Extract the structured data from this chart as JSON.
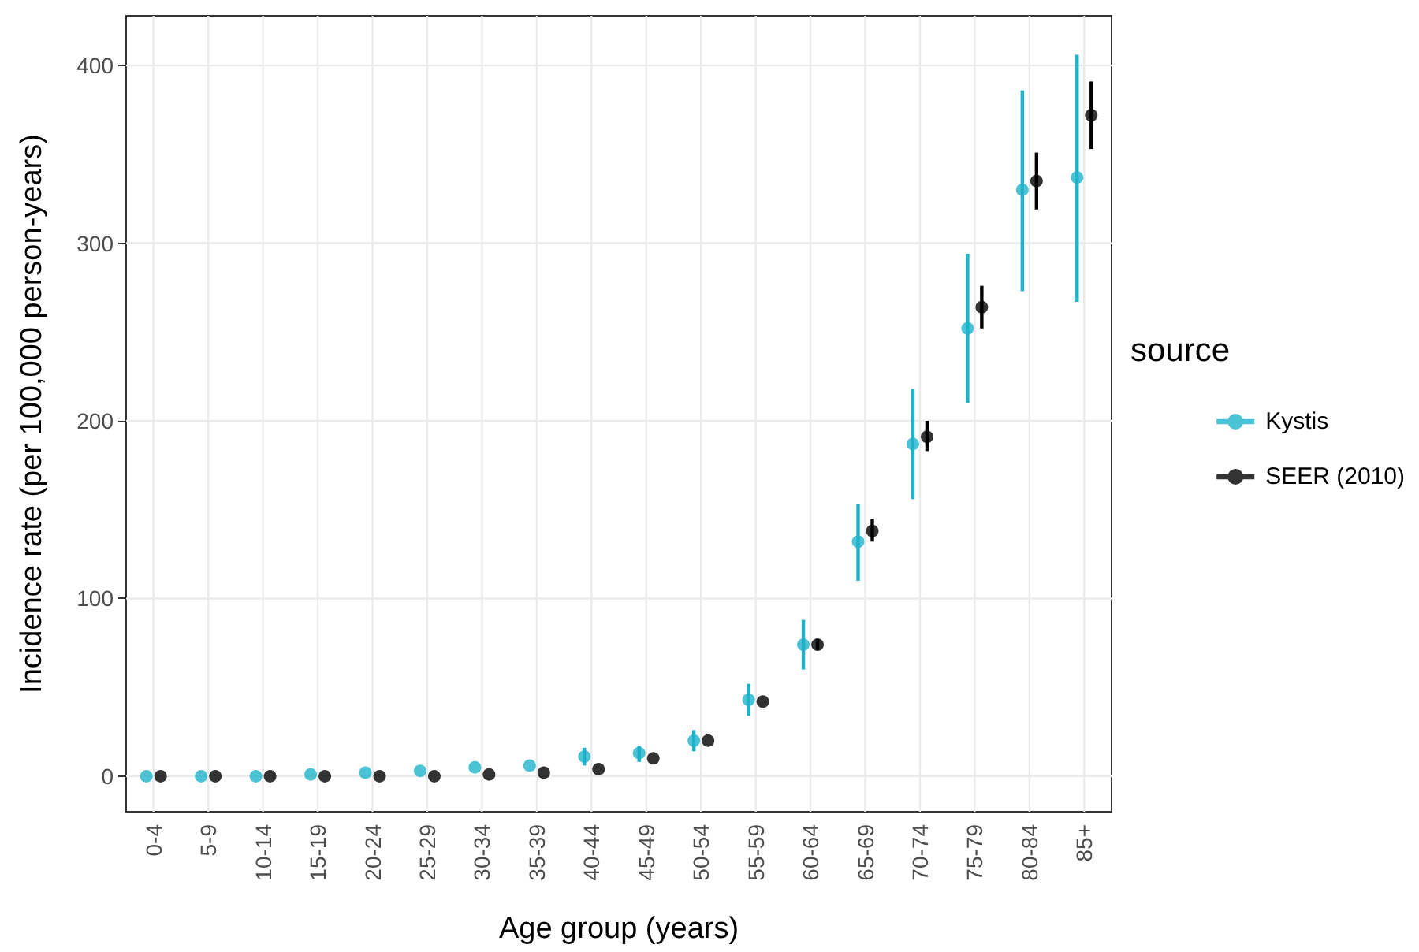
{
  "chart_data": {
    "type": "scatter",
    "xlabel": "Age group (years)",
    "ylabel": "Incidence rate (per 100,000 person-years)",
    "legend_title": "source",
    "categories": [
      "0-4",
      "5-9",
      "10-14",
      "15-19",
      "20-24",
      "25-29",
      "30-34",
      "35-39",
      "40-44",
      "45-49",
      "50-54",
      "55-59",
      "60-64",
      "65-69",
      "70-74",
      "75-79",
      "80-84",
      "85+"
    ],
    "series": [
      {
        "name": "Kystis",
        "color": "#1fb3cb",
        "values": [
          0,
          0,
          0,
          1,
          2,
          3,
          5,
          6,
          11,
          13,
          20,
          43,
          74,
          132,
          187,
          252,
          330,
          337
        ],
        "errors": [
          null,
          null,
          null,
          null,
          null,
          null,
          null,
          null,
          [
            6,
            16
          ],
          [
            8,
            17
          ],
          [
            14,
            26
          ],
          [
            34,
            52
          ],
          [
            60,
            88
          ],
          [
            110,
            153
          ],
          [
            156,
            218
          ],
          [
            210,
            294
          ],
          [
            273,
            386
          ],
          [
            267,
            406
          ]
        ]
      },
      {
        "name": "SEER (2010)",
        "color": "#000000",
        "values": [
          0,
          0,
          0,
          0,
          0,
          0,
          1,
          2,
          4,
          10,
          20,
          42,
          74,
          138,
          191,
          264,
          335,
          372
        ],
        "errors": [
          null,
          null,
          null,
          null,
          null,
          null,
          null,
          null,
          null,
          null,
          null,
          null,
          [
            71,
            77
          ],
          [
            132,
            145
          ],
          [
            183,
            200
          ],
          [
            252,
            276
          ],
          [
            319,
            351
          ],
          [
            353,
            391
          ]
        ]
      }
    ],
    "ylim": [
      -20,
      428
    ],
    "yticks": [
      0,
      100,
      200,
      300,
      400
    ],
    "grid": true,
    "legend": "right",
    "marker": "circle"
  }
}
